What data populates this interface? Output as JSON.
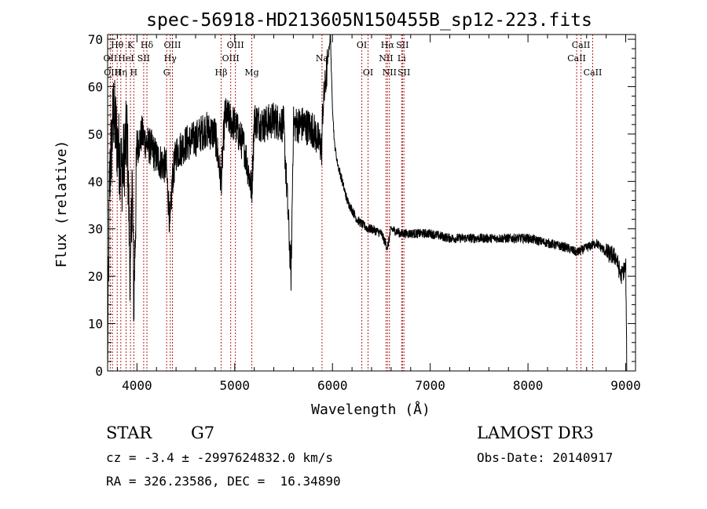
{
  "chart_data": {
    "type": "line",
    "title": "spec-56918-HD213605N150455B_sp12-223.fits",
    "xlabel": "Wavelength (Å)",
    "ylabel": "Flux (relative)",
    "xlim": [
      3700,
      9100
    ],
    "ylim": [
      0,
      71
    ],
    "xticks": [
      4000,
      5000,
      6000,
      7000,
      8000,
      9000
    ],
    "yticks": [
      0,
      10,
      20,
      30,
      40,
      50,
      60,
      70
    ],
    "xtick_labels": [
      "4000",
      "5000",
      "6000",
      "7000",
      "8000",
      "9000"
    ],
    "ytick_labels": [
      "0",
      "10",
      "20",
      "30",
      "40",
      "50",
      "60",
      "70"
    ],
    "spectrum_anchor_points": {
      "x": [
        3700,
        3720,
        3760,
        3800,
        3850,
        3900,
        3934,
        3950,
        3968,
        4000,
        4050,
        4100,
        4150,
        4200,
        4250,
        4300,
        4340,
        4360,
        4400,
        4500,
        4600,
        4700,
        4800,
        4861,
        4900,
        5000,
        5100,
        5175,
        5200,
        5300,
        5400,
        5500,
        5577,
        5600,
        5700,
        5800,
        5890,
        5900,
        5950,
        5980,
        5990,
        6000,
        6020,
        6050,
        6100,
        6150,
        6200,
        6250,
        6300,
        6364,
        6400,
        6500,
        6563,
        6600,
        6700,
        6800,
        6900,
        7000,
        7200,
        7400,
        7600,
        7800,
        8000,
        8200,
        8400,
        8500,
        8600,
        8700,
        8800,
        8900,
        8950,
        9000,
        9010
      ],
      "y": [
        2,
        40,
        55,
        48,
        42,
        50,
        18,
        42,
        14,
        47,
        50,
        48,
        47,
        45,
        44,
        43,
        30,
        40,
        46,
        48,
        49,
        51,
        50,
        40,
        54,
        52,
        47,
        38,
        53,
        52,
        53,
        52,
        20,
        52,
        52,
        51,
        47,
        55,
        65,
        71,
        62,
        56,
        48,
        44,
        40,
        36,
        34,
        32,
        31,
        30,
        30,
        29,
        26,
        30,
        29,
        29,
        29,
        29,
        28,
        28,
        28,
        28,
        28,
        27,
        26,
        25,
        26,
        27,
        25,
        24,
        20,
        22,
        1
      ]
    },
    "line_ids": [
      {
        "wavelength": 3727,
        "label": "OII",
        "row": 1
      },
      {
        "wavelength": 3750,
        "label": "OIII",
        "row": 2
      },
      {
        "wavelength": 3798,
        "label": "Hθ",
        "row": 0
      },
      {
        "wavelength": 3835,
        "label": "Hη",
        "row": 2
      },
      {
        "wavelength": 3889,
        "label": "HeI",
        "row": 1
      },
      {
        "wavelength": 3934,
        "label": "K",
        "row": 0
      },
      {
        "wavelength": 3968,
        "label": "H",
        "row": 2
      },
      {
        "wavelength": 4069,
        "label": "SII",
        "row": 1
      },
      {
        "wavelength": 4102,
        "label": "Hδ",
        "row": 0
      },
      {
        "wavelength": 4304,
        "label": "G",
        "row": 2
      },
      {
        "wavelength": 4341,
        "label": "Hγ",
        "row": 1
      },
      {
        "wavelength": 4363,
        "label": "OIII",
        "row": 0
      },
      {
        "wavelength": 4861,
        "label": "Hβ",
        "row": 2
      },
      {
        "wavelength": 4959,
        "label": "OIII",
        "row": 1
      },
      {
        "wavelength": 5007,
        "label": "OIII",
        "row": 0
      },
      {
        "wavelength": 5175,
        "label": "Mg",
        "row": 2
      },
      {
        "wavelength": 5893,
        "label": "Na",
        "row": 1
      },
      {
        "wavelength": 6300,
        "label": "OI",
        "row": 0
      },
      {
        "wavelength": 6364,
        "label": "OI",
        "row": 2
      },
      {
        "wavelength": 6548,
        "label": "NII",
        "row": 1
      },
      {
        "wavelength": 6563,
        "label": "Hα",
        "row": 0
      },
      {
        "wavelength": 6583,
        "label": "NII",
        "row": 2
      },
      {
        "wavelength": 6708,
        "label": "Li",
        "row": 1
      },
      {
        "wavelength": 6716,
        "label": "SII",
        "row": 0
      },
      {
        "wavelength": 6731,
        "label": "SII",
        "row": 2
      },
      {
        "wavelength": 8498,
        "label": "CaII",
        "row": 1
      },
      {
        "wavelength": 8542,
        "label": "CaII",
        "row": 0
      },
      {
        "wavelength": 8662,
        "label": "CaII",
        "row": 2
      }
    ]
  },
  "info": {
    "object_class": "STAR",
    "subclass": "G7",
    "survey": "LAMOST DR3",
    "redshift_line": "cz = -3.4 ± -2997624832.0 km/s",
    "obs_date_line": "Obs-Date: 20140917",
    "coords_line": "RA = 326.23586, DEC =  16.34890"
  },
  "colors": {
    "line_marker": "#b22222",
    "spectrum": "#000000",
    "axes": "#000000"
  }
}
